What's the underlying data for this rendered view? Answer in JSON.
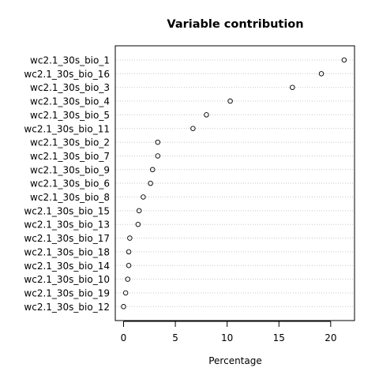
{
  "chart_data": {
    "type": "scatter",
    "title": "Variable contribution",
    "xlabel": "Percentage",
    "ylabel": "",
    "xlim": [
      -0.8,
      22.3
    ],
    "xticks": [
      0,
      5,
      10,
      15,
      20
    ],
    "grid": "horizontal dotted",
    "categories": [
      "wc2.1_30s_bio_1",
      "wc2.1_30s_bio_16",
      "wc2.1_30s_bio_3",
      "wc2.1_30s_bio_4",
      "wc2.1_30s_bio_5",
      "wc2.1_30s_bio_11",
      "wc2.1_30s_bio_2",
      "wc2.1_30s_bio_7",
      "wc2.1_30s_bio_9",
      "wc2.1_30s_bio_6",
      "wc2.1_30s_bio_8",
      "wc2.1_30s_bio_15",
      "wc2.1_30s_bio_13",
      "wc2.1_30s_bio_17",
      "wc2.1_30s_bio_18",
      "wc2.1_30s_bio_14",
      "wc2.1_30s_bio_10",
      "wc2.1_30s_bio_19",
      "wc2.1_30s_bio_12"
    ],
    "values": [
      21.3,
      19.1,
      16.3,
      10.3,
      8.0,
      6.7,
      3.3,
      3.3,
      2.8,
      2.6,
      1.9,
      1.5,
      1.4,
      0.6,
      0.5,
      0.5,
      0.4,
      0.2,
      0.0
    ]
  }
}
